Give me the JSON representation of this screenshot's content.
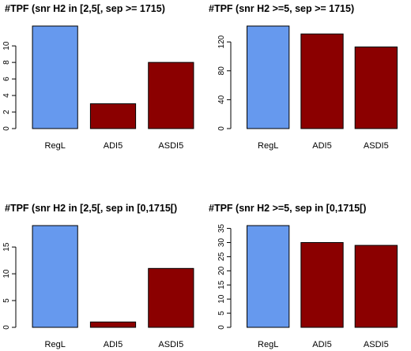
{
  "colors": {
    "regl": "#6699ee",
    "other": "#8b0000"
  },
  "chart_data": [
    {
      "type": "bar",
      "title": "#TPF (snr H2 in [2,5[, sep >= 1715)",
      "categories": [
        "RegL",
        "ADI5",
        "ASDI5"
      ],
      "values": [
        12.4,
        3,
        8
      ],
      "ylim": [
        0,
        12.4
      ],
      "yticks": [
        0,
        2,
        4,
        6,
        8,
        10
      ],
      "grid": false,
      "xlabel": "",
      "ylabel": ""
    },
    {
      "type": "bar",
      "title": "#TPF (snr H2 >=5, sep >= 1715)",
      "categories": [
        "RegL",
        "ADI5",
        "ASDI5"
      ],
      "values": [
        142,
        131,
        113
      ],
      "ylim": [
        0,
        142
      ],
      "yticks": [
        0,
        40,
        80,
        120
      ],
      "grid": false,
      "xlabel": "",
      "ylabel": ""
    },
    {
      "type": "bar",
      "title": "#TPF (snr H2 in [2,5[, sep in [0,1715[)",
      "categories": [
        "RegL",
        "ADI5",
        "ASDI5"
      ],
      "values": [
        19,
        1,
        11
      ],
      "ylim": [
        0,
        19
      ],
      "yticks": [
        0,
        5,
        10,
        15
      ],
      "grid": false,
      "xlabel": "",
      "ylabel": ""
    },
    {
      "type": "bar",
      "title": "#TPF (snr H2 >=5, sep in [0,1715[)",
      "categories": [
        "RegL",
        "ADI5",
        "ASDI5"
      ],
      "values": [
        36,
        30,
        29
      ],
      "ylim": [
        0,
        36
      ],
      "yticks": [
        0,
        5,
        10,
        15,
        20,
        25,
        30,
        35
      ],
      "grid": false,
      "xlabel": "",
      "ylabel": ""
    }
  ]
}
